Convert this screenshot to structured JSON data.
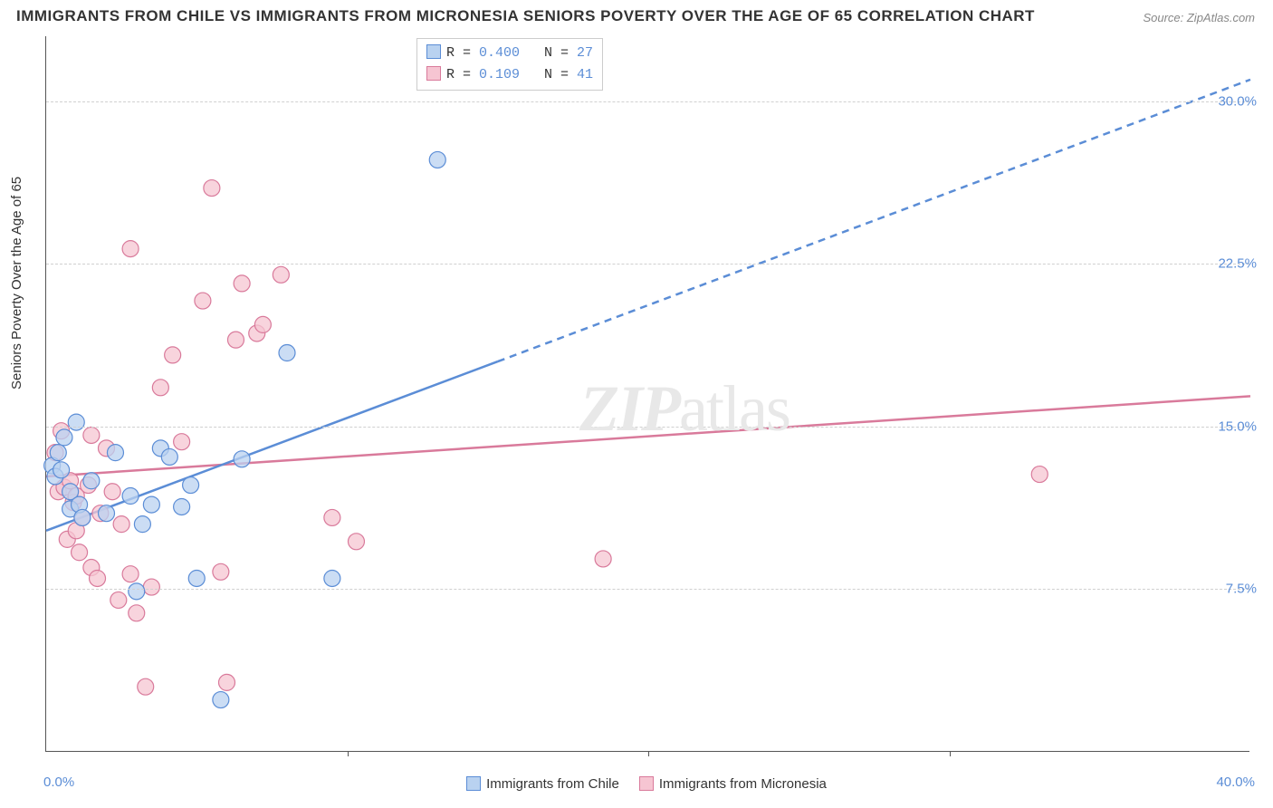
{
  "title": "IMMIGRANTS FROM CHILE VS IMMIGRANTS FROM MICRONESIA SENIORS POVERTY OVER THE AGE OF 65 CORRELATION CHART",
  "source": "Source: ZipAtlas.com",
  "ylabel": "Seniors Poverty Over the Age of 65",
  "watermark_zip": "ZIP",
  "watermark_atlas": "atlas",
  "chart": {
    "type": "scatter",
    "xlim": [
      0.0,
      40.0
    ],
    "ylim": [
      0.0,
      33.0
    ],
    "x_ticks_major": [
      10.0,
      20.0,
      30.0
    ],
    "x_origin_label": "0.0%",
    "x_max_label": "40.0%",
    "y_gridlines": [
      7.5,
      15.0,
      22.5,
      30.0
    ],
    "y_tick_labels": [
      "7.5%",
      "15.0%",
      "22.5%",
      "30.0%"
    ],
    "background_color": "#ffffff",
    "grid_color": "#d0d0d0",
    "axis_color": "#555555",
    "label_color": "#333333",
    "tick_label_color": "#5b8dd6",
    "marker_radius": 9,
    "marker_stroke_width": 1.2,
    "series": [
      {
        "name": "Immigrants from Chile",
        "color_fill": "#b9d2f0",
        "color_stroke": "#5b8dd6",
        "R": "0.400",
        "N": "27",
        "regression": {
          "solid": {
            "x1": 0.0,
            "y1": 10.2,
            "x2": 15.0,
            "y2": 18.0
          },
          "dashed": {
            "x1": 15.0,
            "y1": 18.0,
            "x2": 40.0,
            "y2": 31.0
          },
          "stroke_width": 2.5,
          "dash_pattern": "8 6"
        },
        "points": [
          [
            0.2,
            13.2
          ],
          [
            0.3,
            12.7
          ],
          [
            0.4,
            13.8
          ],
          [
            0.5,
            13.0
          ],
          [
            0.6,
            14.5
          ],
          [
            0.8,
            11.2
          ],
          [
            0.8,
            12.0
          ],
          [
            1.0,
            15.2
          ],
          [
            1.1,
            11.4
          ],
          [
            1.2,
            10.8
          ],
          [
            1.5,
            12.5
          ],
          [
            2.0,
            11.0
          ],
          [
            2.3,
            13.8
          ],
          [
            2.8,
            11.8
          ],
          [
            3.0,
            7.4
          ],
          [
            3.2,
            10.5
          ],
          [
            3.5,
            11.4
          ],
          [
            3.8,
            14.0
          ],
          [
            4.1,
            13.6
          ],
          [
            4.5,
            11.3
          ],
          [
            4.8,
            12.3
          ],
          [
            5.0,
            8.0
          ],
          [
            5.8,
            2.4
          ],
          [
            6.5,
            13.5
          ],
          [
            8.0,
            18.4
          ],
          [
            9.5,
            8.0
          ],
          [
            13.0,
            27.3
          ]
        ]
      },
      {
        "name": "Immigrants from Micronesia",
        "color_fill": "#f6c5d2",
        "color_stroke": "#d97a9b",
        "R": "0.109",
        "N": "41",
        "regression": {
          "solid": {
            "x1": 0.0,
            "y1": 12.7,
            "x2": 40.0,
            "y2": 16.4
          },
          "stroke_width": 2.5
        },
        "points": [
          [
            0.3,
            13.8
          ],
          [
            0.4,
            12.0
          ],
          [
            0.5,
            14.8
          ],
          [
            0.6,
            12.2
          ],
          [
            0.7,
            9.8
          ],
          [
            0.8,
            12.5
          ],
          [
            0.9,
            11.5
          ],
          [
            1.0,
            11.8
          ],
          [
            1.0,
            10.2
          ],
          [
            1.1,
            9.2
          ],
          [
            1.2,
            10.8
          ],
          [
            1.4,
            12.3
          ],
          [
            1.5,
            8.5
          ],
          [
            1.5,
            14.6
          ],
          [
            1.7,
            8.0
          ],
          [
            1.8,
            11.0
          ],
          [
            2.0,
            14.0
          ],
          [
            2.2,
            12.0
          ],
          [
            2.4,
            7.0
          ],
          [
            2.5,
            10.5
          ],
          [
            2.8,
            8.2
          ],
          [
            2.8,
            23.2
          ],
          [
            3.0,
            6.4
          ],
          [
            3.3,
            3.0
          ],
          [
            3.5,
            7.6
          ],
          [
            3.8,
            16.8
          ],
          [
            4.2,
            18.3
          ],
          [
            4.5,
            14.3
          ],
          [
            5.2,
            20.8
          ],
          [
            5.5,
            26.0
          ],
          [
            5.8,
            8.3
          ],
          [
            6.0,
            3.2
          ],
          [
            6.3,
            19.0
          ],
          [
            6.5,
            21.6
          ],
          [
            7.0,
            19.3
          ],
          [
            7.2,
            19.7
          ],
          [
            7.8,
            22.0
          ],
          [
            9.5,
            10.8
          ],
          [
            10.3,
            9.7
          ],
          [
            18.5,
            8.9
          ],
          [
            33.0,
            12.8
          ]
        ]
      }
    ],
    "legend_bottom": [
      {
        "label": "Immigrants from Chile",
        "fill": "#b9d2f0",
        "stroke": "#5b8dd6"
      },
      {
        "label": "Immigrants from Micronesia",
        "fill": "#f6c5d2",
        "stroke": "#d97a9b"
      }
    ]
  }
}
